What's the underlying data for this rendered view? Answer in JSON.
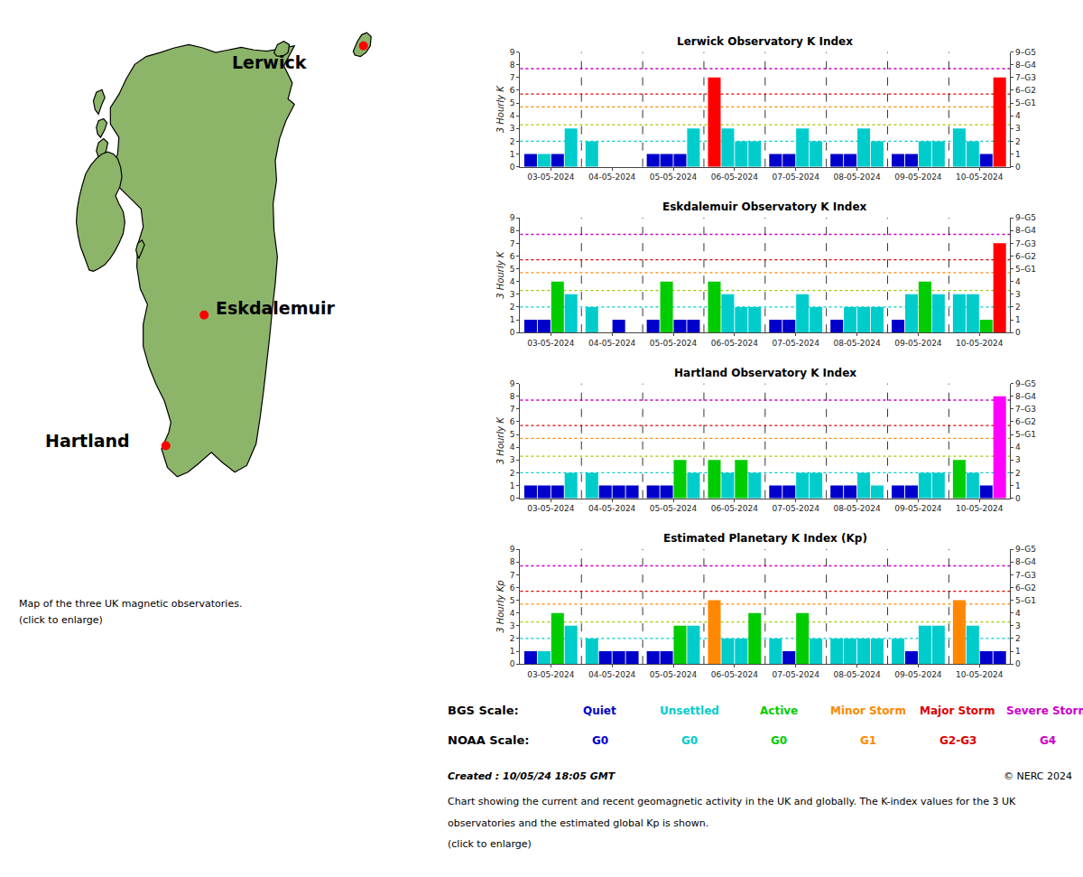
{
  "chart_data": [
    {
      "type": "bar",
      "title": "Lerwick Observatory K Index",
      "categories": [
        "03-05-2024",
        "04-05-2024",
        "05-05-2024",
        "06-05-2024",
        "07-05-2024",
        "08-05-2024",
        "09-05-2024",
        "10-05-2024"
      ],
      "values": [
        [
          1,
          1,
          1,
          3
        ],
        [
          2,
          0,
          0,
          0
        ],
        [
          1,
          1,
          1,
          3
        ],
        [
          7,
          3,
          2,
          2
        ],
        [
          1,
          1,
          3,
          2
        ],
        [
          1,
          1,
          3,
          2
        ],
        [
          1,
          1,
          2,
          2
        ],
        [
          3,
          2,
          1,
          7
        ]
      ],
      "colors": [
        [
          "#0000cc",
          "#00cccc",
          "#0000cc",
          "#00cccc"
        ],
        [
          "#00cccc",
          "#0000cc",
          "#0000cc",
          "#0000cc"
        ],
        [
          "#0000cc",
          "#0000cc",
          "#0000cc",
          "#00cccc"
        ],
        [
          "#ff0000",
          "#00cccc",
          "#00cccc",
          "#00cccc"
        ],
        [
          "#0000cc",
          "#0000cc",
          "#00cccc",
          "#00cccc"
        ],
        [
          "#0000cc",
          "#0000cc",
          "#00cccc",
          "#00cccc"
        ],
        [
          "#0000cc",
          "#0000cc",
          "#00cccc",
          "#00cccc"
        ],
        [
          "#00cccc",
          "#00cccc",
          "#0000cc",
          "#ff0000"
        ]
      ],
      "ylabel": "3 Hourly K",
      "ylim": [
        0,
        9
      ],
      "yticks": [
        0,
        1,
        2,
        3,
        4,
        5,
        6,
        7,
        8,
        9
      ],
      "y2lim": [
        0,
        9
      ],
      "y2ticks": [
        0,
        1,
        2,
        3,
        4,
        {
          "value": 5,
          "label": "5–G1"
        },
        {
          "value": 6,
          "label": "6–G2"
        },
        {
          "value": 7,
          "label": "7–G3"
        },
        {
          "value": 8,
          "label": "8–G4"
        },
        {
          "value": 9,
          "label": "9–G5"
        }
      ],
      "thresholds": [
        {
          "value": 2.0,
          "color": "#00cccc"
        },
        {
          "value": 3.3,
          "color": "#99cc00"
        },
        {
          "value": 4.7,
          "color": "#ff8800"
        },
        {
          "value": 5.7,
          "color": "#dd0000"
        },
        {
          "value": 7.7,
          "color": "#cc00cc"
        }
      ],
      "grid": false
    },
    {
      "type": "bar",
      "title": "Eskdalemuir Observatory K Index",
      "categories": [
        "03-05-2024",
        "04-05-2024",
        "05-05-2024",
        "06-05-2024",
        "07-05-2024",
        "08-05-2024",
        "09-05-2024",
        "10-05-2024"
      ],
      "values": [
        [
          1,
          1,
          4,
          3
        ],
        [
          2,
          0,
          1,
          0
        ],
        [
          1,
          4,
          1,
          1
        ],
        [
          4,
          3,
          2,
          2
        ],
        [
          1,
          1,
          3,
          2
        ],
        [
          1,
          2,
          2,
          2
        ],
        [
          1,
          3,
          4,
          3
        ],
        [
          3,
          3,
          1,
          7
        ]
      ],
      "colors": [
        [
          "#0000cc",
          "#0000cc",
          "#00cc00",
          "#00cccc"
        ],
        [
          "#00cccc",
          "#0000cc",
          "#0000cc",
          "#0000cc"
        ],
        [
          "#0000cc",
          "#00cc00",
          "#0000cc",
          "#0000cc"
        ],
        [
          "#00cc00",
          "#00cccc",
          "#00cccc",
          "#00cccc"
        ],
        [
          "#0000cc",
          "#0000cc",
          "#00cccc",
          "#00cccc"
        ],
        [
          "#0000cc",
          "#00cccc",
          "#00cccc",
          "#00cccc"
        ],
        [
          "#0000cc",
          "#00cccc",
          "#00cc00",
          "#00cccc"
        ],
        [
          "#00cccc",
          "#00cccc",
          "#00cc00",
          "#ff0000"
        ]
      ],
      "ylabel": "3 Hourly K",
      "ylim": [
        0,
        9
      ],
      "yticks": [
        0,
        1,
        2,
        3,
        4,
        5,
        6,
        7,
        8,
        9
      ],
      "y2lim": [
        0,
        9
      ],
      "y2ticks": [
        0,
        1,
        2,
        3,
        4,
        {
          "value": 5,
          "label": "5–G1"
        },
        {
          "value": 6,
          "label": "6–G2"
        },
        {
          "value": 7,
          "label": "7–G3"
        },
        {
          "value": 8,
          "label": "8–G4"
        },
        {
          "value": 9,
          "label": "9–G5"
        }
      ],
      "thresholds": [
        {
          "value": 2.0,
          "color": "#00cccc"
        },
        {
          "value": 3.3,
          "color": "#99cc00"
        },
        {
          "value": 4.7,
          "color": "#ff8800"
        },
        {
          "value": 5.7,
          "color": "#dd0000"
        },
        {
          "value": 7.7,
          "color": "#cc00cc"
        }
      ],
      "grid": false
    },
    {
      "type": "bar",
      "title": "Hartland Observatory K Index",
      "categories": [
        "03-05-2024",
        "04-05-2024",
        "05-05-2024",
        "06-05-2024",
        "07-05-2024",
        "08-05-2024",
        "09-05-2024",
        "10-05-2024"
      ],
      "values": [
        [
          1,
          1,
          1,
          2
        ],
        [
          2,
          1,
          1,
          1
        ],
        [
          1,
          1,
          3,
          2
        ],
        [
          3,
          2,
          3,
          2
        ],
        [
          1,
          1,
          2,
          2
        ],
        [
          1,
          1,
          2,
          1
        ],
        [
          1,
          1,
          2,
          2
        ],
        [
          3,
          2,
          1,
          8
        ]
      ],
      "colors": [
        [
          "#0000cc",
          "#0000cc",
          "#0000cc",
          "#00cccc"
        ],
        [
          "#00cccc",
          "#0000cc",
          "#0000cc",
          "#0000cc"
        ],
        [
          "#0000cc",
          "#0000cc",
          "#00cc00",
          "#00cccc"
        ],
        [
          "#00cc00",
          "#00cccc",
          "#00cc00",
          "#00cccc"
        ],
        [
          "#0000cc",
          "#0000cc",
          "#00cccc",
          "#00cccc"
        ],
        [
          "#0000cc",
          "#0000cc",
          "#00cccc",
          "#00cccc"
        ],
        [
          "#0000cc",
          "#0000cc",
          "#00cccc",
          "#00cccc"
        ],
        [
          "#00cc00",
          "#00cccc",
          "#0000cc",
          "#ff00ff"
        ]
      ],
      "ylabel": "3 Hourly K",
      "ylim": [
        0,
        9
      ],
      "yticks": [
        0,
        1,
        2,
        3,
        4,
        5,
        6,
        7,
        8,
        9
      ],
      "y2lim": [
        0,
        9
      ],
      "y2ticks": [
        0,
        1,
        2,
        3,
        4,
        {
          "value": 5,
          "label": "5–G1"
        },
        {
          "value": 6,
          "label": "6–G2"
        },
        {
          "value": 7,
          "label": "7–G3"
        },
        {
          "value": 8,
          "label": "8–G4"
        },
        {
          "value": 9,
          "label": "9–G5"
        }
      ],
      "thresholds": [
        {
          "value": 2.0,
          "color": "#00cccc"
        },
        {
          "value": 3.3,
          "color": "#99cc00"
        },
        {
          "value": 4.7,
          "color": "#ff8800"
        },
        {
          "value": 5.7,
          "color": "#dd0000"
        },
        {
          "value": 7.7,
          "color": "#cc00cc"
        }
      ],
      "grid": false
    },
    {
      "type": "bar",
      "title": "Estimated Planetary K Index (Kp)",
      "categories": [
        "03-05-2024",
        "04-05-2024",
        "05-05-2024",
        "06-05-2024",
        "07-05-2024",
        "08-05-2024",
        "09-05-2024",
        "10-05-2024"
      ],
      "values": [
        [
          1,
          1,
          4,
          3
        ],
        [
          2,
          1,
          1,
          1
        ],
        [
          1,
          1,
          3,
          3
        ],
        [
          5,
          2,
          2,
          4
        ],
        [
          2,
          1,
          4,
          2
        ],
        [
          2,
          2,
          2,
          2
        ],
        [
          2,
          1,
          3,
          3
        ],
        [
          5,
          3,
          1,
          1
        ]
      ],
      "colors": [
        [
          "#0000cc",
          "#00cccc",
          "#00cc00",
          "#00cccc"
        ],
        [
          "#00cccc",
          "#0000cc",
          "#0000cc",
          "#0000cc"
        ],
        [
          "#0000cc",
          "#0000cc",
          "#00cc00",
          "#00cccc"
        ],
        [
          "#ff8800",
          "#00cccc",
          "#00cccc",
          "#00cc00"
        ],
        [
          "#00cccc",
          "#0000cc",
          "#00cc00",
          "#00cccc"
        ],
        [
          "#00cccc",
          "#00cccc",
          "#00cccc",
          "#00cccc"
        ],
        [
          "#00cccc",
          "#0000cc",
          "#00cccc",
          "#00cccc"
        ],
        [
          "#ff8800",
          "#00cccc",
          "#0000cc",
          "#0000cc"
        ]
      ],
      "ylabel": "3 Hourly Kp",
      "ylim": [
        0,
        9
      ],
      "yticks": [
        0,
        1,
        2,
        3,
        4,
        5,
        6,
        7,
        8,
        9
      ],
      "y2lim": [
        0,
        9
      ],
      "y2ticks": [
        0,
        1,
        2,
        3,
        4,
        {
          "value": 5,
          "label": "5–G1"
        },
        {
          "value": 6,
          "label": "6–G2"
        },
        {
          "value": 7,
          "label": "7–G3"
        },
        {
          "value": 8,
          "label": "8–G4"
        },
        {
          "value": 9,
          "label": "9–G5"
        }
      ],
      "thresholds": [
        {
          "value": 2.0,
          "color": "#00cccc"
        },
        {
          "value": 3.3,
          "color": "#99cc00"
        },
        {
          "value": 4.7,
          "color": "#ff8800"
        },
        {
          "value": 5.7,
          "color": "#dd0000"
        },
        {
          "value": 7.7,
          "color": "#cc00cc"
        }
      ],
      "grid": false
    }
  ],
  "map": {
    "labels": [
      "Lerwick",
      "Eskdalemuir",
      "Hartland"
    ],
    "marker_color": "#ff0000",
    "land_color": "#8db56a",
    "edge_color": "#000000",
    "notes": [
      "Map of the three UK magnetic observatories.",
      "(click to enlarge)"
    ]
  },
  "scale_legend": [
    {
      "title": "BGS Scale:",
      "items": [
        {
          "text": "Quiet",
          "color": "#0000cc"
        },
        {
          "text": "Unsettled",
          "color": "#00cccc"
        },
        {
          "text": "Active",
          "color": "#00cc00"
        },
        {
          "text": "Minor Storm",
          "color": "#ff8800"
        },
        {
          "text": "Major Storm",
          "color": "#dd0000"
        },
        {
          "text": "Severe Storm",
          "color": "#cc00cc"
        }
      ]
    },
    {
      "title": "NOAA Scale:",
      "items": [
        {
          "text": "G0",
          "color": "#0000cc"
        },
        {
          "text": "G0",
          "color": "#00cccc"
        },
        {
          "text": "G0",
          "color": "#00cc00"
        },
        {
          "text": "G1",
          "color": "#ff8800"
        },
        {
          "text": "G2-G3",
          "color": "#dd0000"
        },
        {
          "text": "G4",
          "color": "#cc00cc"
        }
      ]
    }
  ],
  "footer": {
    "left": "Created : 10/05/24 18:05 GMT",
    "right": "© NERC 2024",
    "lines": [
      "Chart showing the current and recent geomagnetic activity in the UK and globally. The K-index values for the 3 UK",
      "observatories and the estimated global Kp is shown.",
      "(click to enlarge)"
    ]
  }
}
